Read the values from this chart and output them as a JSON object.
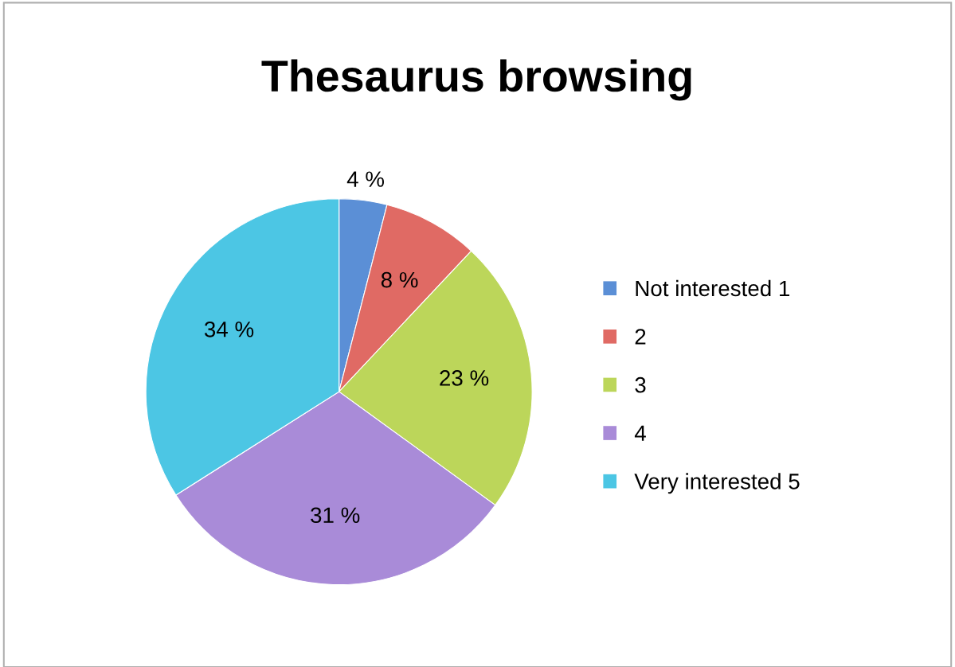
{
  "chart_data": {
    "type": "pie",
    "title": "Thesaurus browsing",
    "categories": [
      "Not interested 1",
      "2",
      "3",
      "4",
      "Very interested 5"
    ],
    "values": [
      4,
      8,
      23,
      31,
      34
    ],
    "colors": [
      "#5b8fd6",
      "#e06a64",
      "#bcd65a",
      "#a98bd8",
      "#4cc6e4"
    ],
    "value_labels": [
      "4 %",
      "8 %",
      "23 %",
      "31 %",
      "34 %"
    ],
    "legend": "right"
  }
}
